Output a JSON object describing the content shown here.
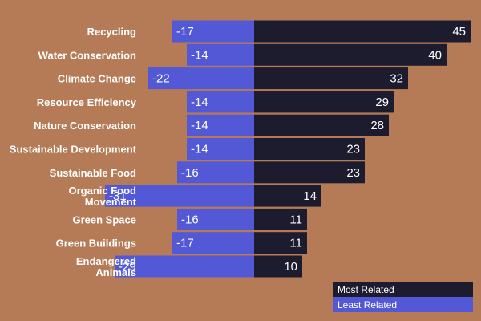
{
  "colors": {
    "background": "#b57b57",
    "most_related": "#1d1b2e",
    "least_related": "#5358d6",
    "text": "#ffffff"
  },
  "chart_data": {
    "type": "bar",
    "orientation": "horizontal-diverging",
    "title": "",
    "xlabel": "",
    "ylabel": "",
    "categories": [
      "Recycling",
      "Water Conservation",
      "Climate Change",
      "Resource Efficiency",
      "Nature Conservation",
      "Sustainable Development",
      "Sustainable Food",
      "Organic Food Movement",
      "Green Space",
      "Green Buildings",
      "Endangered Animals"
    ],
    "category_display_lines": [
      [
        "Recycling"
      ],
      [
        "Water Conservation"
      ],
      [
        "Climate Change"
      ],
      [
        "Resource Efficiency"
      ],
      [
        "Nature Conservation"
      ],
      [
        "Sustainable Development"
      ],
      [
        "Sustainable Food"
      ],
      [
        "Organic Food",
        "Movement"
      ],
      [
        "Green Space"
      ],
      [
        "Green Buildings"
      ],
      [
        "Endangered",
        "Animals"
      ]
    ],
    "series": [
      {
        "name": "Most Related",
        "values": [
          45,
          40,
          32,
          29,
          28,
          23,
          23,
          14,
          11,
          11,
          10
        ]
      },
      {
        "name": "Least Related",
        "values": [
          -17,
          -14,
          -22,
          -14,
          -14,
          -14,
          -16,
          -31,
          -16,
          -17,
          -29
        ]
      }
    ],
    "xlim": [
      -31,
      45
    ],
    "legend": [
      "Most Related",
      "Least Related"
    ],
    "legend_position": "bottom-right",
    "grid": false
  }
}
